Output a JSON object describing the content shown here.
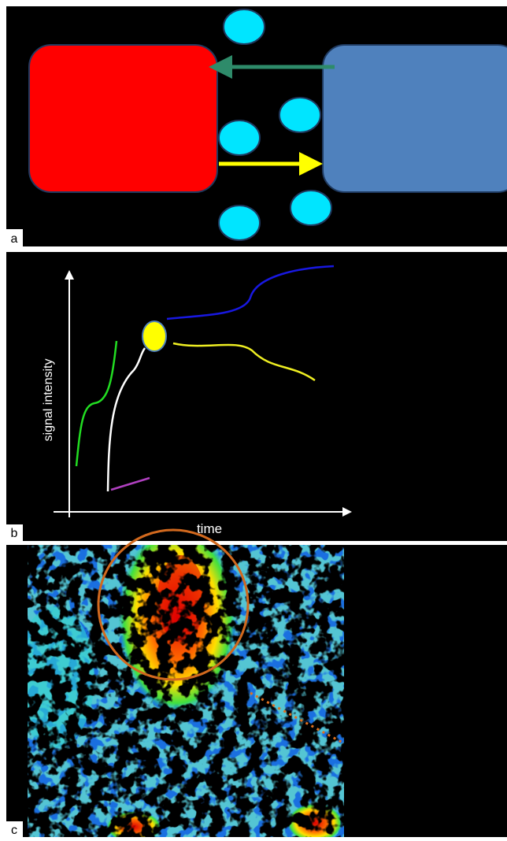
{
  "panels": [
    {
      "label": "a"
    },
    {
      "label": "b",
      "y_axis_label": "signal intensity",
      "x_axis_label": "time"
    },
    {
      "label": "c"
    }
  ]
}
